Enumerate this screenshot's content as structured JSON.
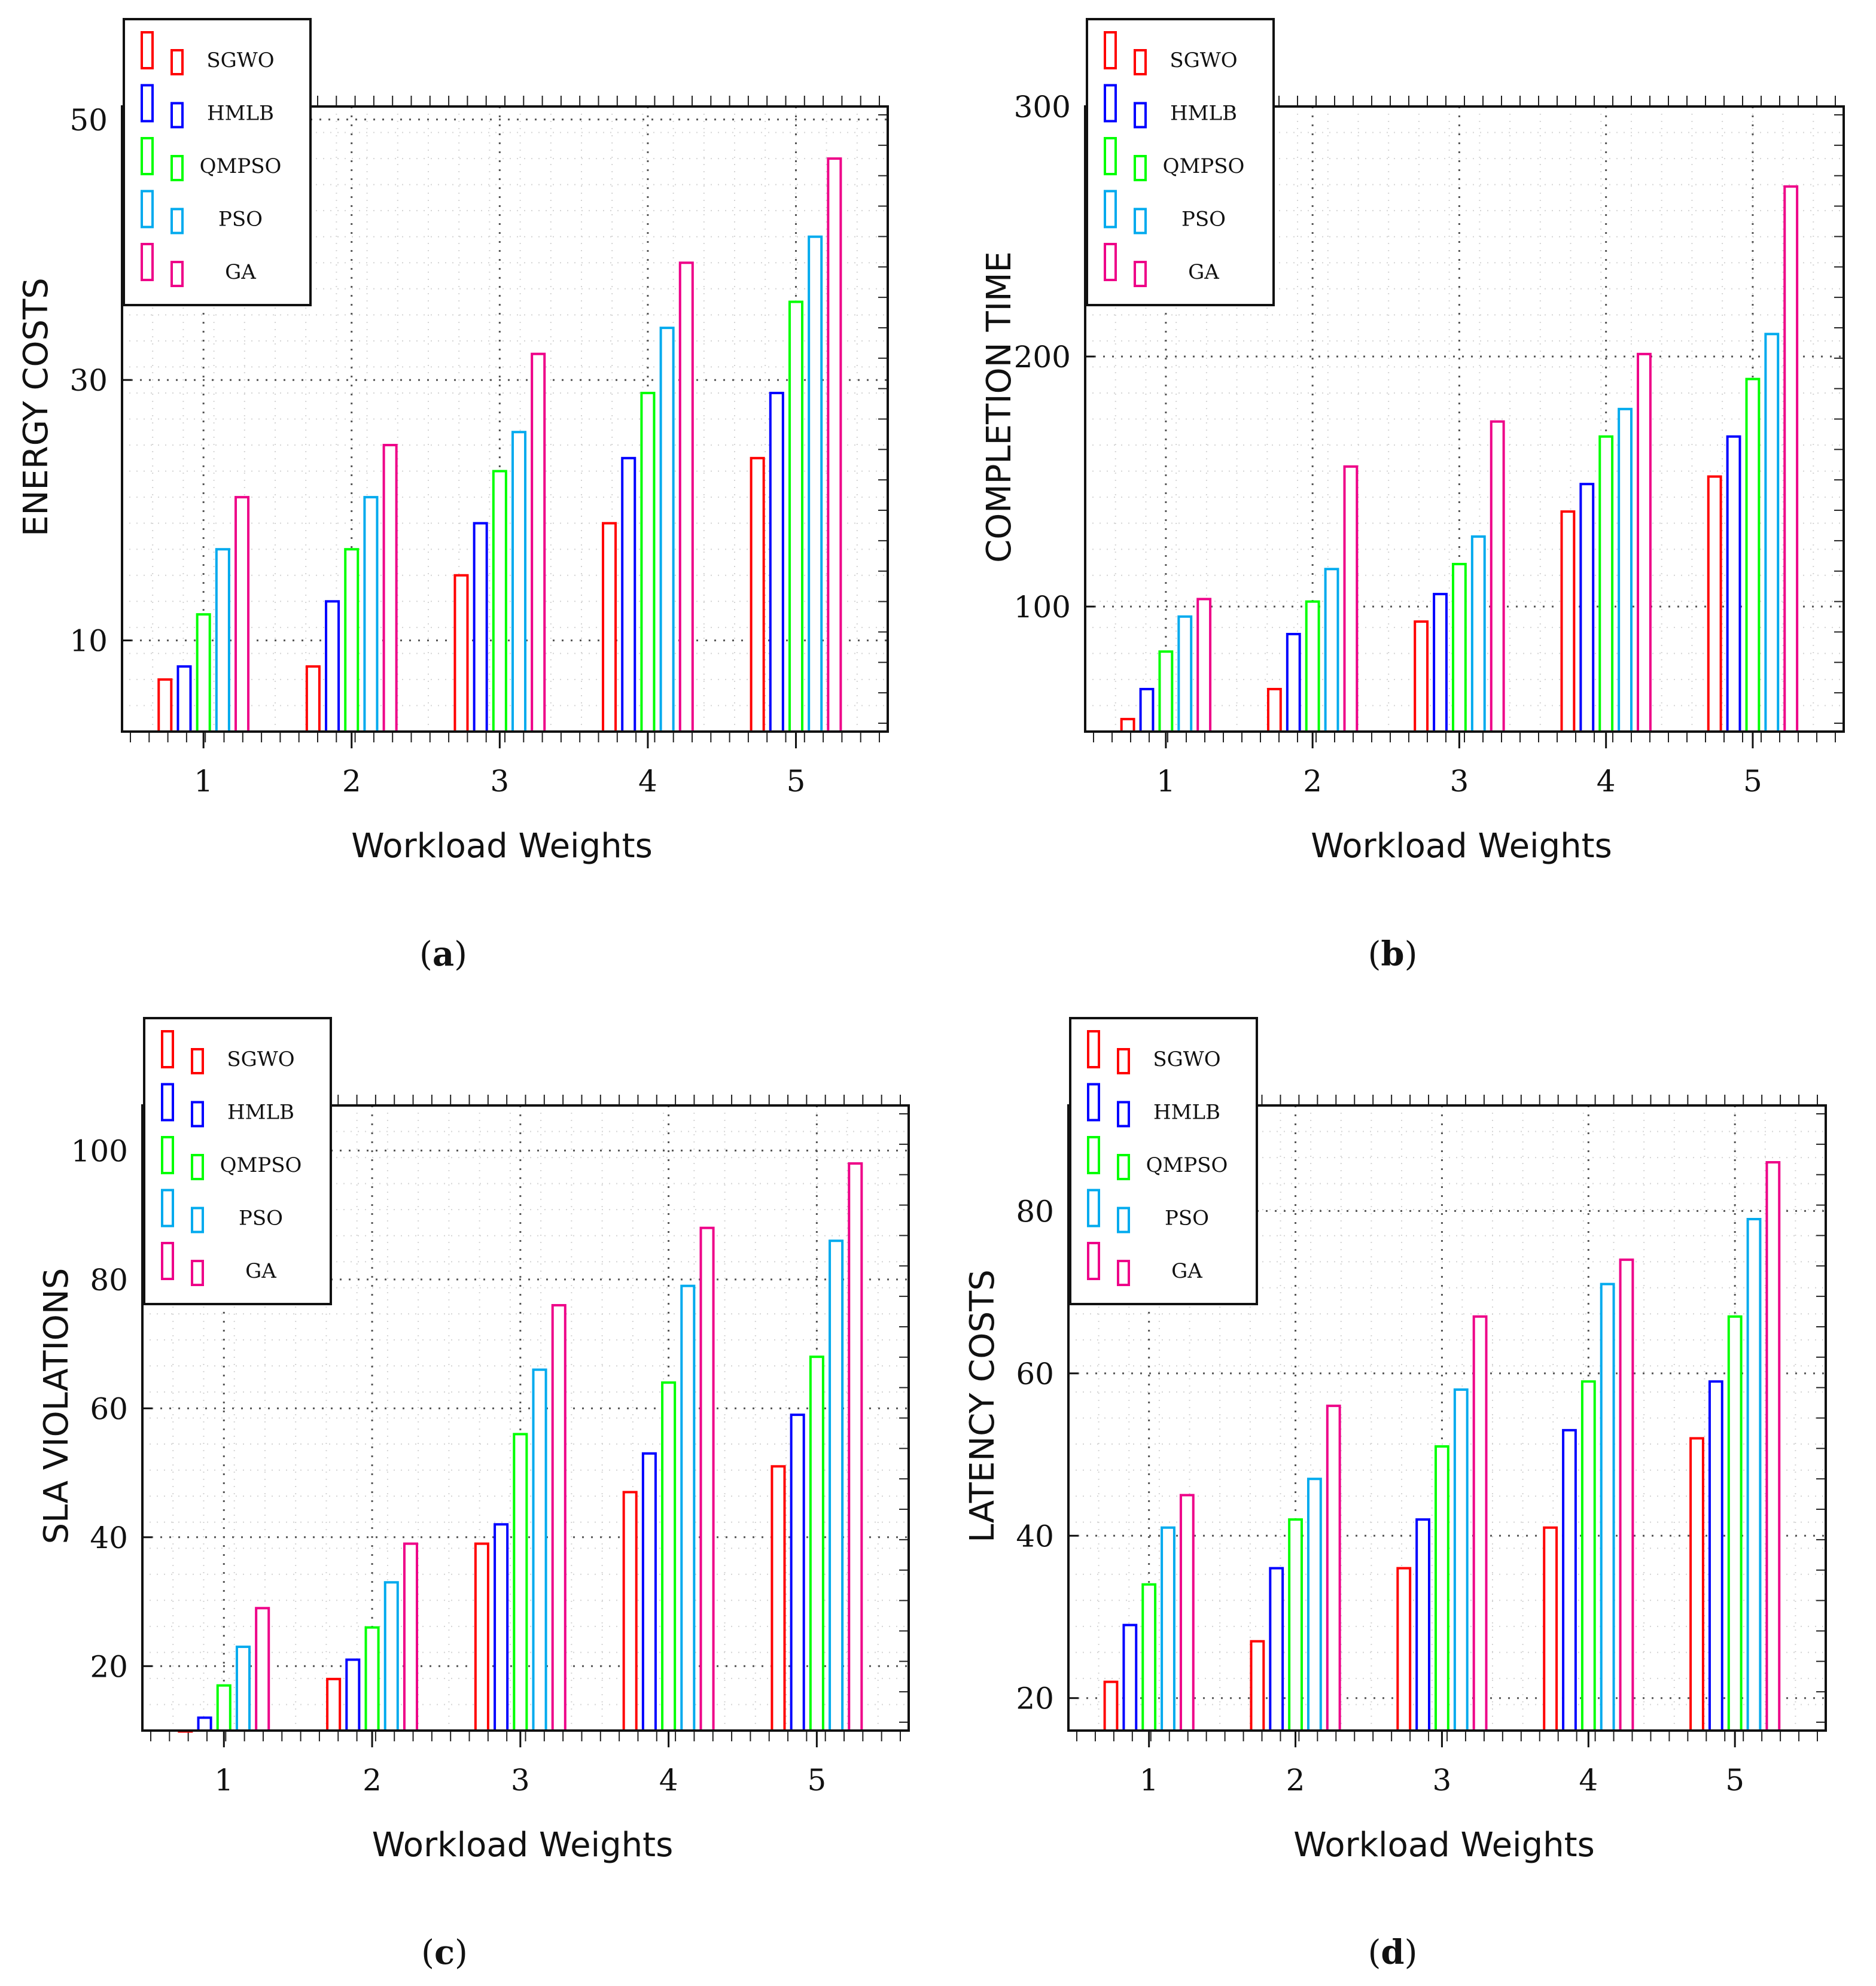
{
  "chart_data": [
    {
      "type": "bar",
      "caption_letter": "a",
      "xlabel": "Workload Weights",
      "ylabel": "ENERGY COSTS",
      "categories": [
        "1",
        "2",
        "3",
        "4",
        "5"
      ],
      "ylim": [
        3,
        51
      ],
      "yticks": [
        10,
        30,
        50
      ],
      "series": [
        {
          "name": "SGWO",
          "color": "#ff0000",
          "values": [
            7,
            8,
            15,
            19,
            24
          ]
        },
        {
          "name": "HMLB",
          "color": "#0000ff",
          "values": [
            8,
            13,
            19,
            24,
            29
          ]
        },
        {
          "name": "QMPSO",
          "color": "#00ff00",
          "values": [
            12,
            17,
            23,
            29,
            36
          ]
        },
        {
          "name": "PSO",
          "color": "#00aaee",
          "values": [
            17,
            21,
            26,
            34,
            41
          ]
        },
        {
          "name": "GA",
          "color": "#ee0088",
          "values": [
            21,
            25,
            32,
            39,
            47
          ]
        }
      ]
    },
    {
      "type": "bar",
      "caption_letter": "b",
      "xlabel": "Workload Weights",
      "ylabel": "COMPLETION TIME",
      "categories": [
        "1",
        "2",
        "3",
        "4",
        "5"
      ],
      "ylim": [
        50,
        300
      ],
      "yticks": [
        100,
        200,
        300
      ],
      "series": [
        {
          "name": "SGWO",
          "color": "#ff0000",
          "values": [
            55,
            67,
            94,
            138,
            152
          ]
        },
        {
          "name": "HMLB",
          "color": "#0000ff",
          "values": [
            67,
            89,
            105,
            149,
            168
          ]
        },
        {
          "name": "QMPSO",
          "color": "#00ff00",
          "values": [
            82,
            102,
            117,
            168,
            191
          ]
        },
        {
          "name": "PSO",
          "color": "#00aaee",
          "values": [
            96,
            115,
            128,
            179,
            209
          ]
        },
        {
          "name": "GA",
          "color": "#ee0088",
          "values": [
            103,
            156,
            174,
            201,
            268
          ]
        }
      ]
    },
    {
      "type": "bar",
      "caption_letter": "c",
      "xlabel": "Workload Weights",
      "ylabel": "SLA VIOLATIONS",
      "categories": [
        "1",
        "2",
        "3",
        "4",
        "5"
      ],
      "ylim": [
        10,
        107
      ],
      "yticks": [
        20,
        40,
        60,
        80,
        100
      ],
      "series": [
        {
          "name": "SGWO",
          "color": "#ff0000",
          "values": [
            10,
            18,
            39,
            47,
            51
          ]
        },
        {
          "name": "HMLB",
          "color": "#0000ff",
          "values": [
            12,
            21,
            42,
            53,
            59
          ]
        },
        {
          "name": "QMPSO",
          "color": "#00ff00",
          "values": [
            17,
            26,
            56,
            64,
            68
          ]
        },
        {
          "name": "PSO",
          "color": "#00aaee",
          "values": [
            23,
            33,
            66,
            79,
            86
          ]
        },
        {
          "name": "GA",
          "color": "#ee0088",
          "values": [
            29,
            39,
            76,
            88,
            98
          ]
        }
      ]
    },
    {
      "type": "bar",
      "caption_letter": "d",
      "xlabel": "Workload Weights",
      "ylabel": "LATENCY COSTS",
      "categories": [
        "1",
        "2",
        "3",
        "4",
        "5"
      ],
      "ylim": [
        16,
        93
      ],
      "yticks": [
        20,
        40,
        60,
        80
      ],
      "series": [
        {
          "name": "SGWO",
          "color": "#ff0000",
          "values": [
            22,
            27,
            36,
            41,
            52
          ]
        },
        {
          "name": "HMLB",
          "color": "#0000ff",
          "values": [
            29,
            36,
            42,
            53,
            59
          ]
        },
        {
          "name": "QMPSO",
          "color": "#00ff00",
          "values": [
            34,
            42,
            51,
            59,
            67
          ]
        },
        {
          "name": "PSO",
          "color": "#00aaee",
          "values": [
            41,
            47,
            58,
            71,
            79
          ]
        },
        {
          "name": "GA",
          "color": "#ee0088",
          "values": [
            45,
            56,
            67,
            74,
            86
          ]
        }
      ]
    }
  ]
}
